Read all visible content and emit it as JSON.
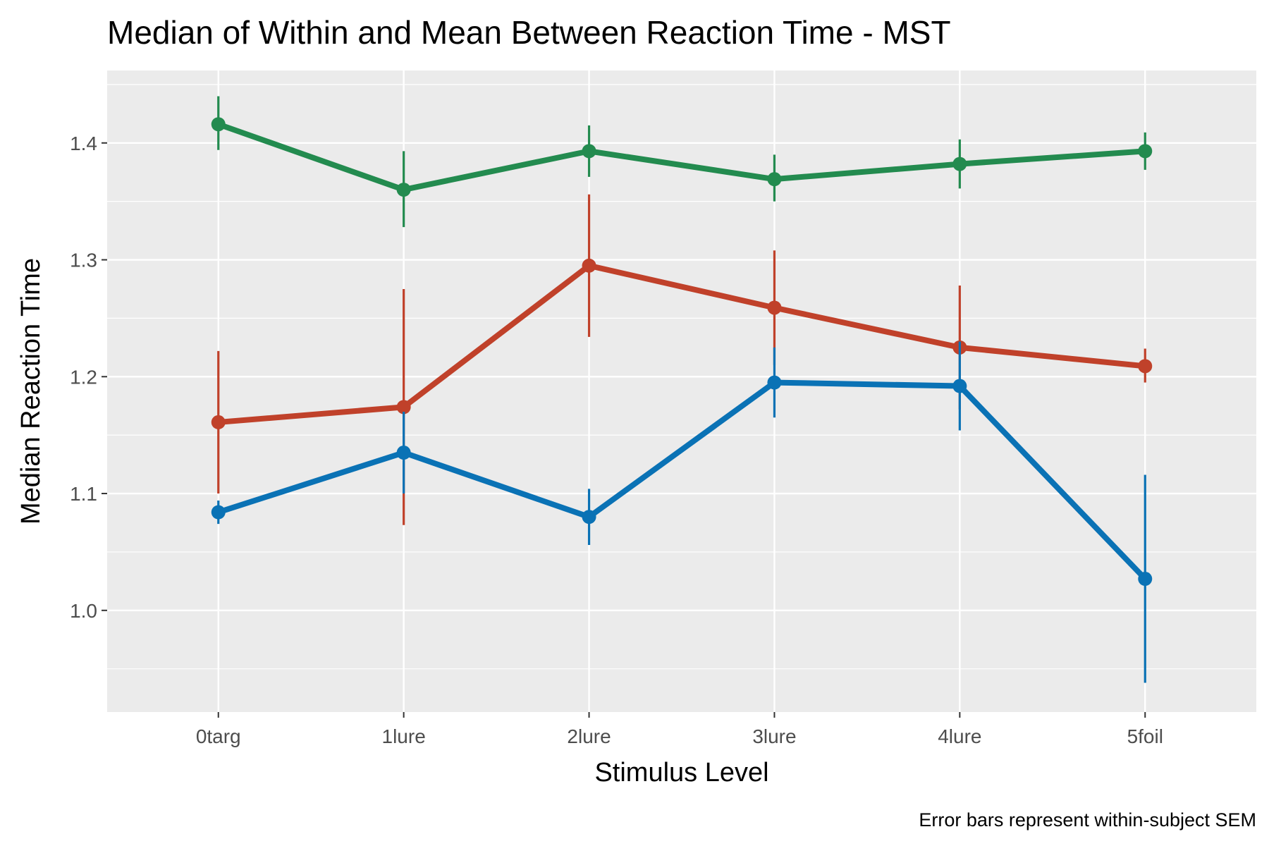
{
  "chart_data": {
    "type": "line",
    "title": "Median of Within and Mean Between Reaction Time - MST",
    "xlabel": "Stimulus Level",
    "ylabel": "Median Reaction Time",
    "caption": "Error bars represent within-subject SEM",
    "categories": [
      "0targ",
      "1lure",
      "2lure",
      "3lure",
      "4lure",
      "5foil"
    ],
    "ylim": [
      0.913,
      1.462
    ],
    "yticks": [
      1.0,
      1.1,
      1.2,
      1.3,
      1.4
    ],
    "ytick_labels": [
      "1.0",
      "1.1",
      "1.2",
      "1.3",
      "1.4"
    ],
    "grid": true,
    "legend": "none",
    "background": "#ebebeb",
    "series": [
      {
        "color": "#238b4f",
        "values": [
          1.416,
          1.36,
          1.393,
          1.369,
          1.382,
          1.393
        ],
        "error_low": [
          1.394,
          1.328,
          1.371,
          1.35,
          1.361,
          1.377
        ],
        "error_high": [
          1.44,
          1.393,
          1.415,
          1.39,
          1.403,
          1.409
        ]
      },
      {
        "color": "#c0412a",
        "values": [
          1.161,
          1.174,
          1.295,
          1.259,
          1.225,
          1.209
        ],
        "error_low": [
          1.1,
          1.073,
          1.234,
          1.21,
          1.172,
          1.195
        ],
        "error_high": [
          1.222,
          1.275,
          1.356,
          1.308,
          1.278,
          1.224
        ]
      },
      {
        "color": "#0a72b5",
        "values": [
          1.084,
          1.135,
          1.08,
          1.195,
          1.192,
          1.027
        ],
        "error_low": [
          1.074,
          1.1,
          1.056,
          1.165,
          1.154,
          0.938
        ],
        "error_high": [
          1.094,
          1.17,
          1.104,
          1.225,
          1.23,
          1.116
        ]
      }
    ]
  }
}
